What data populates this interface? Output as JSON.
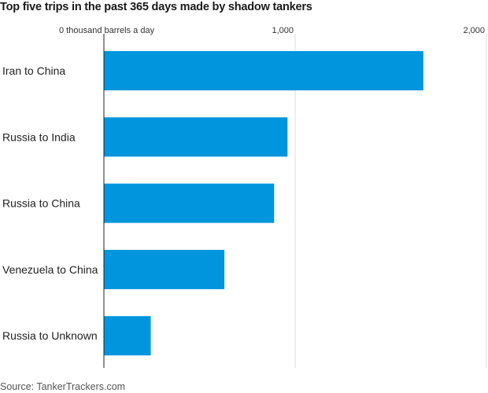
{
  "chart_data": {
    "type": "bar",
    "orientation": "horizontal",
    "title": "Top five trips in the past 365 days made by shadow tankers",
    "unit_label": "thousand barrels a day",
    "categories": [
      "Iran to China",
      "Russia to India",
      "Russia to China",
      "Venezuela to China",
      "Russia to Unknown"
    ],
    "values": [
      1670,
      960,
      890,
      630,
      245
    ],
    "xlim": [
      0,
      2000
    ],
    "ticks": [
      {
        "value": 0,
        "label": "0"
      },
      {
        "value": 1000,
        "label": "1,000"
      },
      {
        "value": 2000,
        "label": "2,000"
      }
    ],
    "grid": true,
    "source": "Source: TankerTrackers.com"
  },
  "colors": {
    "bar": "#0095dc",
    "grid": "#dddddd",
    "axis": "#222222"
  }
}
